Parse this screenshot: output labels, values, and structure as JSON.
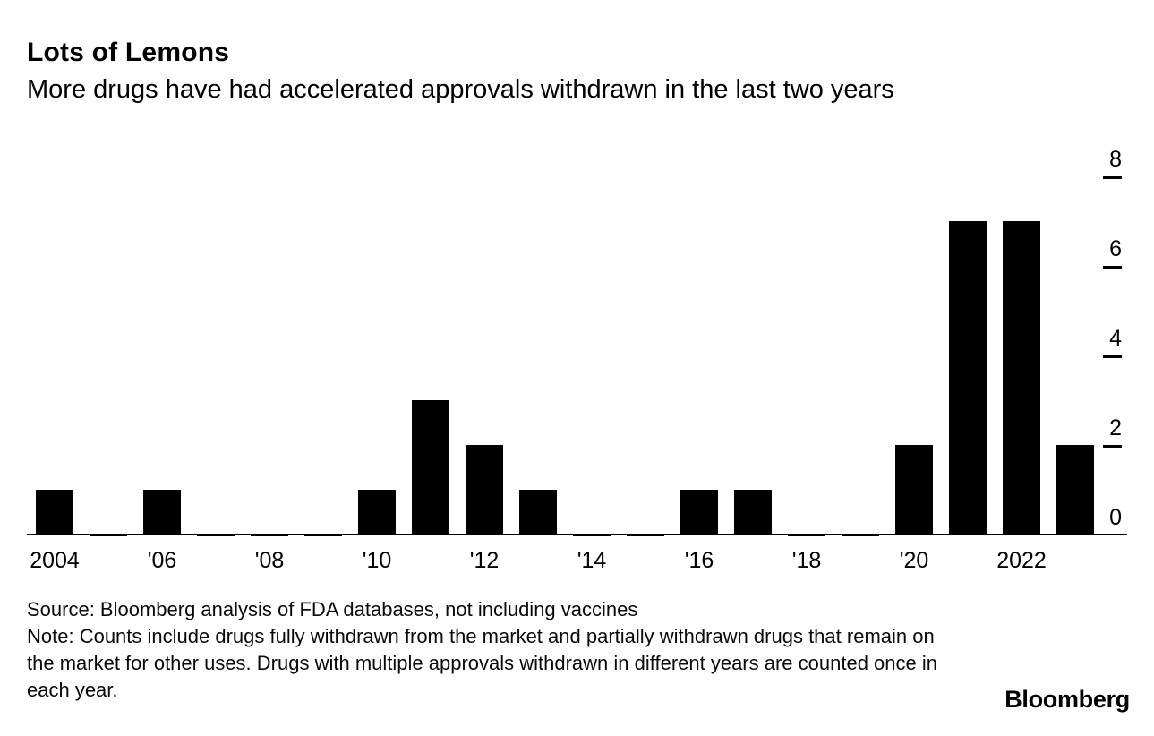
{
  "chart_data": {
    "type": "bar",
    "title": "Lots of Lemons",
    "subtitle": "More drugs have had accelerated approvals withdrawn in the last two years",
    "categories": [
      2004,
      2005,
      2006,
      2007,
      2008,
      2009,
      2010,
      2011,
      2012,
      2013,
      2014,
      2015,
      2016,
      2017,
      2018,
      2019,
      2020,
      2021,
      2022,
      2023
    ],
    "values": [
      1,
      0,
      1,
      0,
      0,
      0,
      1,
      3,
      2,
      1,
      0,
      0,
      1,
      1,
      0,
      0,
      2,
      7,
      7,
      2
    ],
    "xlabel": "",
    "ylabel": "",
    "ylim": [
      0,
      8
    ],
    "y_ticks": [
      0,
      2,
      4,
      6,
      8
    ],
    "y_axis_side": "right",
    "x_tick_labels": [
      {
        "year": 2004,
        "label": "2004"
      },
      {
        "year": 2006,
        "label": "'06"
      },
      {
        "year": 2008,
        "label": "'08"
      },
      {
        "year": 2010,
        "label": "'10"
      },
      {
        "year": 2012,
        "label": "'12"
      },
      {
        "year": 2014,
        "label": "'14"
      },
      {
        "year": 2016,
        "label": "'16"
      },
      {
        "year": 2018,
        "label": "'18"
      },
      {
        "year": 2020,
        "label": "'20"
      },
      {
        "year": 2022,
        "label": "2022"
      }
    ],
    "grid": false,
    "legend": "none",
    "bar_color": "#000000",
    "background_color": "#ffffff"
  },
  "footer": {
    "source": "Source: Bloomberg analysis of FDA databases, not including vaccines",
    "note": "Note: Counts include drugs fully withdrawn from the market and partially withdrawn drugs that remain on the market for other uses. Drugs with multiple approvals withdrawn in different years are counted once in each year.",
    "brand": "Bloomberg"
  }
}
